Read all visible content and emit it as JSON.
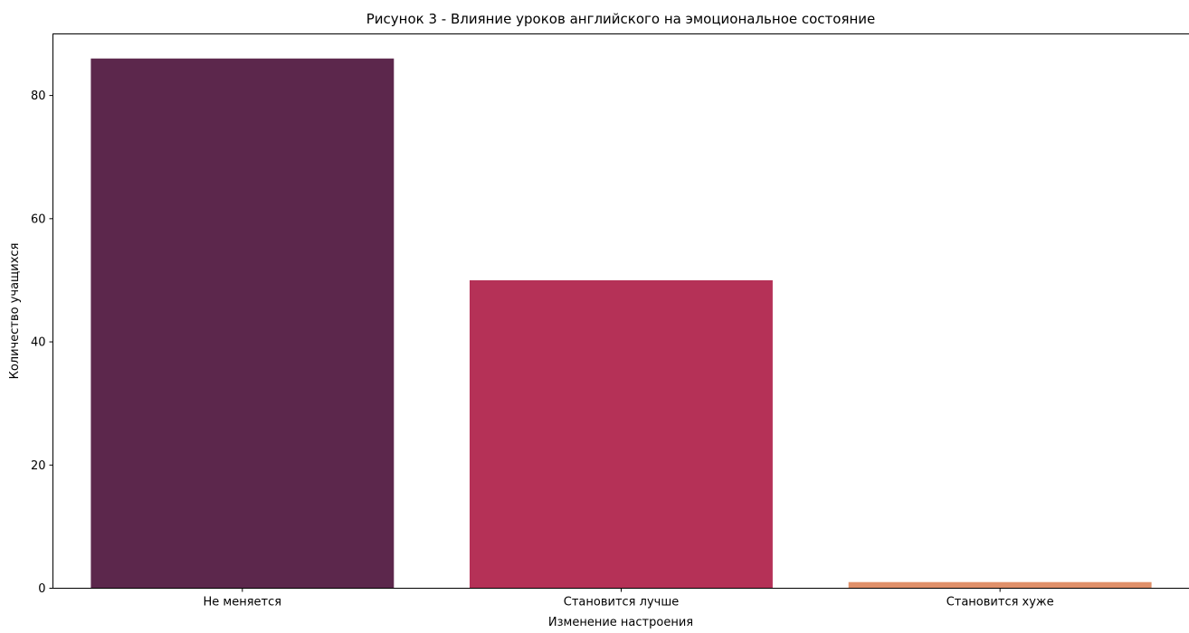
{
  "chart_data": {
    "type": "bar",
    "title": "Рисунок 3 - Влияние уроков английского на эмоциональное состояние",
    "xlabel": "Изменение настроения",
    "ylabel": "Количество учащихся",
    "categories": [
      "Не меняется",
      "Становится лучше",
      "Становится хуже"
    ],
    "values": [
      86,
      50,
      1
    ],
    "colors": [
      "#5c274c",
      "#b53157",
      "#e0906a"
    ],
    "ylim": [
      0,
      90
    ],
    "yticks": [
      0,
      20,
      40,
      60,
      80
    ],
    "grid": false,
    "legend": false
  }
}
